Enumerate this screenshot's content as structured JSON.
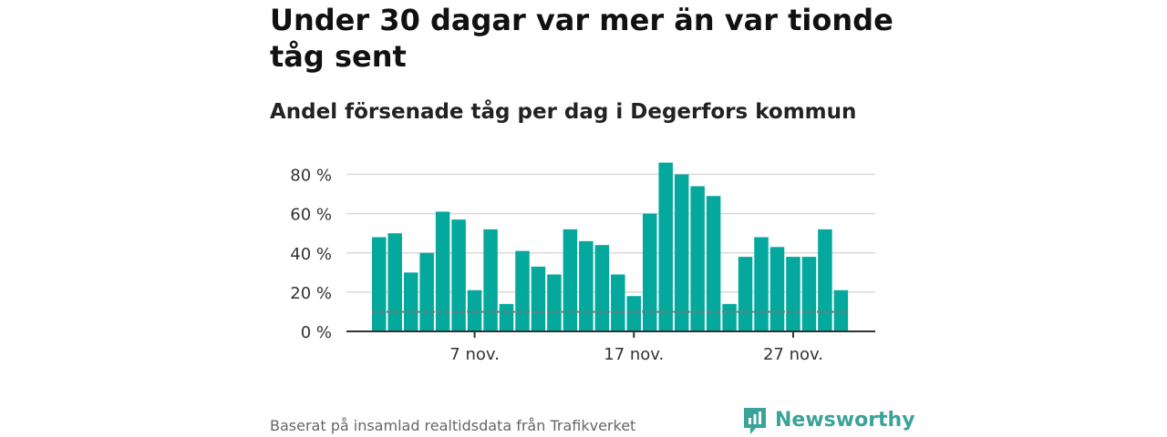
{
  "title": "Under 30 dagar var mer än var tionde tåg sent",
  "subtitle": "Andel försenade tåg per dag i Degerfors kommun",
  "footer": {
    "source": "Baserat på insamlad realtidsdata från Trafikverket",
    "brand": "Newsworthy",
    "brand_color": "#3aa39a"
  },
  "chart_data": {
    "type": "bar",
    "title": "Under 30 dagar var mer än var tionde tåg sent",
    "subtitle": "Andel försenade tåg per dag i Degerfors kommun",
    "unit": "%",
    "bar_color": "#05a89c",
    "reference_line": {
      "value": 10,
      "color": "#777777",
      "style": "dashed"
    },
    "ylim": [
      0,
      90
    ],
    "yticks": [
      0,
      20,
      40,
      60,
      80
    ],
    "ytick_labels": [
      "0 %",
      "20 %",
      "40 %",
      "60 %",
      "80 %"
    ],
    "grid": true,
    "x_start": 1,
    "x_tick_days": [
      7,
      17,
      27
    ],
    "x_tick_labels": [
      "7 nov.",
      "17 nov.",
      "27 nov."
    ],
    "categories": [
      "1 nov.",
      "2 nov.",
      "3 nov.",
      "4 nov.",
      "5 nov.",
      "6 nov.",
      "7 nov.",
      "8 nov.",
      "9 nov.",
      "10 nov.",
      "11 nov.",
      "12 nov.",
      "13 nov.",
      "14 nov.",
      "15 nov.",
      "16 nov.",
      "17 nov.",
      "18 nov.",
      "19 nov.",
      "20 nov.",
      "21 nov.",
      "22 nov.",
      "23 nov.",
      "24 nov.",
      "25 nov.",
      "26 nov.",
      "27 nov.",
      "28 nov.",
      "29 nov.",
      "30 nov."
    ],
    "values": [
      48,
      50,
      30,
      40,
      61,
      57,
      21,
      52,
      14,
      41,
      33,
      29,
      52,
      46,
      44,
      29,
      18,
      60,
      86,
      80,
      74,
      69,
      14,
      38,
      48,
      43,
      38,
      38,
      52,
      21
    ]
  }
}
